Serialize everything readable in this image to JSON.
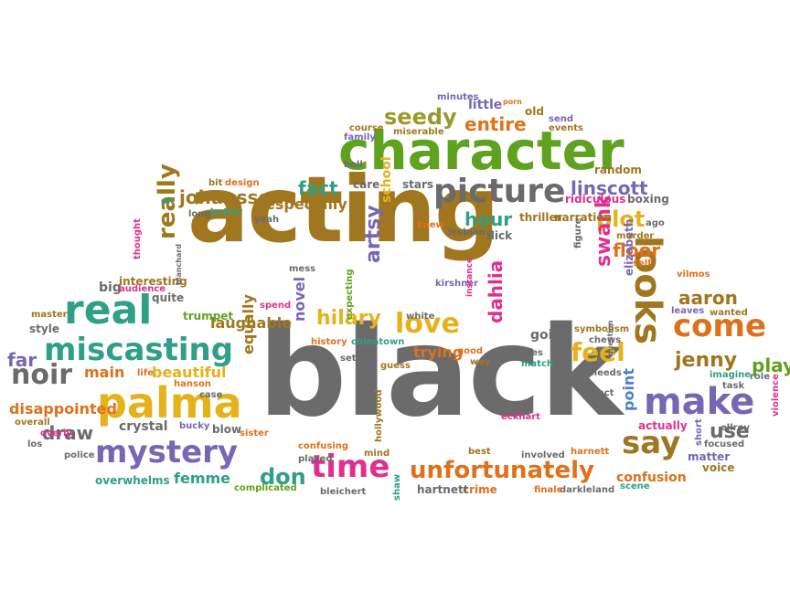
{
  "palette": {
    "brown": "#a0761e",
    "gray": "#6b6b6b",
    "green": "#5fa21f",
    "orange": "#e0701a",
    "yellow": "#e5b21b",
    "purple": "#7766b5",
    "teal": "#2f9f86",
    "pink": "#e0308f",
    "red": "#d9462e",
    "olive": "#9a9a2a",
    "blue": "#4f7fc7"
  },
  "words": [
    {
      "text": "acting",
      "color": "brown"
    },
    {
      "text": "black",
      "color": "gray"
    },
    {
      "text": "character",
      "color": "green"
    },
    {
      "text": "picture",
      "color": "gray"
    },
    {
      "text": "real",
      "color": "teal"
    },
    {
      "text": "miscasting",
      "color": "teal"
    },
    {
      "text": "palma",
      "color": "yellow"
    },
    {
      "text": "mystery",
      "color": "purple"
    },
    {
      "text": "make",
      "color": "purple"
    },
    {
      "text": "looks",
      "color": "brown"
    },
    {
      "text": "come",
      "color": "orange"
    },
    {
      "text": "say",
      "color": "brown"
    },
    {
      "text": "time",
      "color": "pink"
    },
    {
      "text": "unfortunately",
      "color": "orange"
    },
    {
      "text": "love",
      "color": "yellow"
    },
    {
      "text": "noir",
      "color": "gray"
    },
    {
      "text": "seedy",
      "color": "olive"
    },
    {
      "text": "entire",
      "color": "orange"
    },
    {
      "text": "fact",
      "color": "teal"
    },
    {
      "text": "johansson",
      "color": "brown"
    },
    {
      "text": "especially",
      "color": "brown"
    },
    {
      "text": "linscott",
      "color": "purple"
    },
    {
      "text": "plot",
      "color": "yellow"
    },
    {
      "text": "floor",
      "color": "orange"
    },
    {
      "text": "hour",
      "color": "teal"
    },
    {
      "text": "really",
      "color": "brown"
    },
    {
      "text": "artsy",
      "color": "purple"
    },
    {
      "text": "hilary",
      "color": "yellow"
    },
    {
      "text": "swank",
      "color": "pink"
    },
    {
      "text": "aaron",
      "color": "brown"
    },
    {
      "text": "jenny",
      "color": "brown"
    },
    {
      "text": "play",
      "color": "green"
    },
    {
      "text": "feel",
      "color": "yellow"
    },
    {
      "text": "dahlia",
      "color": "pink"
    },
    {
      "text": "don",
      "color": "teal"
    },
    {
      "text": "use",
      "color": "gray"
    },
    {
      "text": "draw",
      "color": "gray"
    },
    {
      "text": "main",
      "color": "orange"
    },
    {
      "text": "far",
      "color": "purple"
    },
    {
      "text": "beautiful",
      "color": "yellow"
    },
    {
      "text": "laughable",
      "color": "brown"
    },
    {
      "text": "novel",
      "color": "purple"
    },
    {
      "text": "trying",
      "color": "orange"
    },
    {
      "text": "disappointed",
      "color": "orange"
    },
    {
      "text": "crystal",
      "color": "gray"
    },
    {
      "text": "femme",
      "color": "teal"
    },
    {
      "text": "confusion",
      "color": "orange"
    },
    {
      "text": "going",
      "color": "gray"
    },
    {
      "text": "point",
      "color": "blue"
    },
    {
      "text": "equally",
      "color": "brown"
    },
    {
      "text": "elizabeth",
      "color": "purple"
    },
    {
      "text": "school",
      "color": "yellow"
    },
    {
      "text": "interesting",
      "color": "brown"
    },
    {
      "text": "big",
      "color": "gray"
    },
    {
      "text": "trumpet",
      "color": "green"
    },
    {
      "text": "quite",
      "color": "gray"
    },
    {
      "text": "thriller",
      "color": "brown"
    },
    {
      "text": "narration",
      "color": "brown"
    },
    {
      "text": "flick",
      "color": "gray"
    },
    {
      "text": "ridiculous",
      "color": "pink"
    },
    {
      "text": "boxing",
      "color": "gray"
    },
    {
      "text": "random",
      "color": "brown"
    },
    {
      "text": "stars",
      "color": "gray"
    },
    {
      "text": "care",
      "color": "gray"
    },
    {
      "text": "design",
      "color": "orange"
    },
    {
      "text": "bit",
      "color": "brown"
    },
    {
      "text": "better",
      "color": "teal"
    },
    {
      "text": "yeah",
      "color": "gray"
    },
    {
      "text": "long",
      "color": "gray"
    },
    {
      "text": "knew",
      "color": "orange"
    },
    {
      "text": "lesbian",
      "color": "gray"
    },
    {
      "text": "murder",
      "color": "brown"
    },
    {
      "text": "self",
      "color": "orange"
    },
    {
      "text": "ago",
      "color": "gray"
    },
    {
      "text": "figure",
      "color": "gray"
    },
    {
      "text": "vilmos",
      "color": "orange"
    },
    {
      "text": "leaves",
      "color": "purple"
    },
    {
      "text": "wanted",
      "color": "brown"
    },
    {
      "text": "symbolism",
      "color": "brown"
    },
    {
      "text": "chews",
      "color": "gray"
    },
    {
      "text": "question",
      "color": "gray"
    },
    {
      "text": "kirshner",
      "color": "purple"
    },
    {
      "text": "instance",
      "color": "pink"
    },
    {
      "text": "white",
      "color": "gray"
    },
    {
      "text": "expecting",
      "color": "green"
    },
    {
      "text": "mess",
      "color": "gray"
    },
    {
      "text": "spend",
      "color": "pink"
    },
    {
      "text": "history",
      "color": "orange"
    },
    {
      "text": "chinatown",
      "color": "teal"
    },
    {
      "text": "set",
      "color": "gray"
    },
    {
      "text": "guess",
      "color": "brown"
    },
    {
      "text": "good",
      "color": "orange"
    },
    {
      "text": "movies",
      "color": "gray"
    },
    {
      "text": "match",
      "color": "teal"
    },
    {
      "text": "way",
      "color": "brown"
    },
    {
      "text": "needs",
      "color": "gray"
    },
    {
      "text": "imagine",
      "color": "teal"
    },
    {
      "text": "task",
      "color": "gray"
    },
    {
      "text": "role",
      "color": "gray"
    },
    {
      "text": "violence",
      "color": "pink"
    },
    {
      "text": "act",
      "color": "gray"
    },
    {
      "text": "actually",
      "color": "pink"
    },
    {
      "text": "short",
      "color": "purple"
    },
    {
      "text": "ellroy",
      "color": "gray"
    },
    {
      "text": "focused",
      "color": "gray"
    },
    {
      "text": "matter",
      "color": "purple"
    },
    {
      "text": "voice",
      "color": "brown"
    },
    {
      "text": "scene",
      "color": "teal"
    },
    {
      "text": "darkleland",
      "color": "gray"
    },
    {
      "text": "finale",
      "color": "orange"
    },
    {
      "text": "crime",
      "color": "orange"
    },
    {
      "text": "best",
      "color": "brown"
    },
    {
      "text": "involved",
      "color": "gray"
    },
    {
      "text": "harnett",
      "color": "orange"
    },
    {
      "text": "eckhart",
      "color": "pink"
    },
    {
      "text": "hartnett",
      "color": "gray"
    },
    {
      "text": "shaw",
      "color": "teal"
    },
    {
      "text": "bleichert",
      "color": "gray"
    },
    {
      "text": "mind",
      "color": "brown"
    },
    {
      "text": "hollywood",
      "color": "brown"
    },
    {
      "text": "played",
      "color": "gray"
    },
    {
      "text": "confusing",
      "color": "orange"
    },
    {
      "text": "complicated",
      "color": "green"
    },
    {
      "text": "overwhelms",
      "color": "teal"
    },
    {
      "text": "police",
      "color": "gray"
    },
    {
      "text": "overall",
      "color": "brown"
    },
    {
      "text": "overly",
      "color": "pink"
    },
    {
      "text": "los",
      "color": "gray"
    },
    {
      "text": "bucky",
      "color": "purple"
    },
    {
      "text": "blow",
      "color": "gray"
    },
    {
      "text": "sister",
      "color": "orange"
    },
    {
      "text": "hanson",
      "color": "orange"
    },
    {
      "text": "case",
      "color": "gray"
    },
    {
      "text": "life",
      "color": "orange"
    },
    {
      "text": "style",
      "color": "gray"
    },
    {
      "text": "master",
      "color": "brown"
    },
    {
      "text": "audience",
      "color": "pink"
    },
    {
      "text": "thought",
      "color": "pink"
    },
    {
      "text": "blanchard",
      "color": "gray"
    },
    {
      "text": "oh",
      "color": "teal"
    },
    {
      "text": "course",
      "color": "brown"
    },
    {
      "text": "family",
      "color": "purple"
    },
    {
      "text": "miserable",
      "color": "brown"
    },
    {
      "text": "hell",
      "color": "gray"
    },
    {
      "text": "events",
      "color": "brown"
    },
    {
      "text": "send",
      "color": "purple"
    },
    {
      "text": "old",
      "color": "brown"
    },
    {
      "text": "porn",
      "color": "orange"
    },
    {
      "text": "little",
      "color": "purple"
    },
    {
      "text": "minutes",
      "color": "purple"
    }
  ]
}
